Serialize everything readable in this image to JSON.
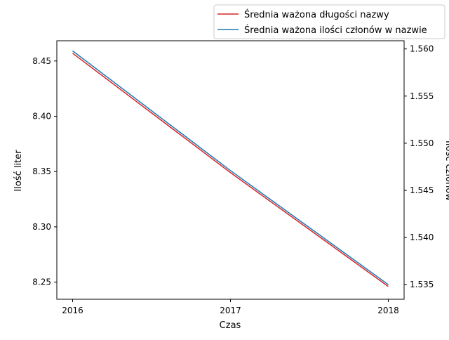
{
  "chart_data": {
    "type": "line",
    "xlabel": "Czas",
    "ylabel_left": "Ilość liter",
    "ylabel_right": "Ilość członów",
    "x": [
      2016,
      2017,
      2018
    ],
    "xlim": [
      2015.9,
      2018.1
    ],
    "x_ticks": [
      "2016",
      "2017",
      "2018"
    ],
    "left_ylim": [
      8.2345,
      8.4683
    ],
    "left_ticks": [
      "8.25",
      "8.30",
      "8.35",
      "8.40",
      "8.45"
    ],
    "right_ylim": [
      1.53345,
      1.56087
    ],
    "right_ticks": [
      "1.535",
      "1.540",
      "1.545",
      "1.550",
      "1.555",
      "1.560"
    ],
    "series": [
      {
        "name": "Średnia ważona długości nazwy",
        "axis": "left",
        "color": "#d62728",
        "values": [
          8.457,
          8.349,
          8.246
        ]
      },
      {
        "name": "Średnia ważona ilości członów w nazwie",
        "axis": "right",
        "color": "#1f77b4",
        "values": [
          1.5598,
          1.5471,
          1.535
        ]
      }
    ],
    "legend_position": "top-right"
  }
}
